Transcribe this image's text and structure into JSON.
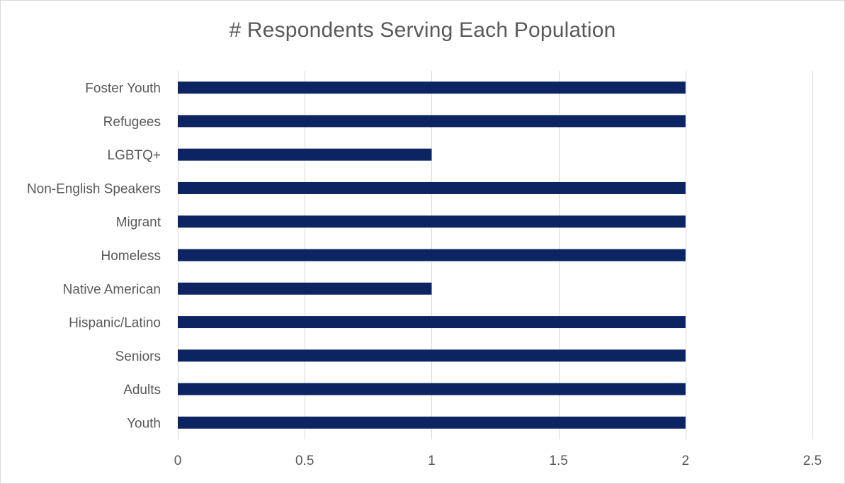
{
  "chart_data": {
    "type": "bar",
    "orientation": "horizontal",
    "title": "# Respondents Serving Each Population",
    "xlabel": "",
    "ylabel": "",
    "categories": [
      "Youth",
      "Adults",
      "Seniors",
      "Hispanic/Latino",
      "Native American",
      "Homeless",
      "Migrant",
      "Non-English Speakers",
      "LGBTQ+",
      "Refugees",
      "Foster Youth"
    ],
    "values": [
      2,
      2,
      2,
      2,
      1,
      2,
      2,
      2,
      1,
      2,
      2
    ],
    "xlim": [
      0,
      2.5
    ],
    "xticks": [
      "0",
      "0.5",
      "1",
      "1.5",
      "2",
      "2.5"
    ],
    "grid": "vertical",
    "legend": "none",
    "bar_color": "#0c2461"
  }
}
